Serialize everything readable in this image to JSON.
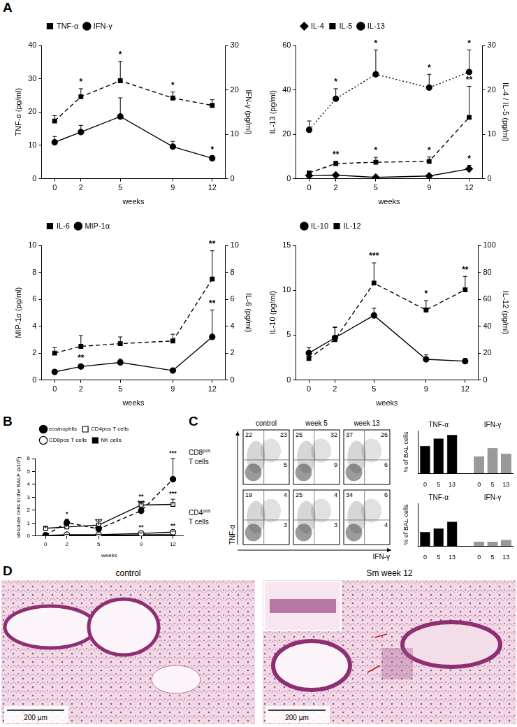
{
  "panel_labels": [
    "A",
    "B",
    "C",
    "D"
  ],
  "chart_data": [
    {
      "type": "line",
      "x_label": "weeks",
      "y_label": "TNF-α (pg/ml)",
      "y2_label": "IFN-γ (pg/ml)",
      "x": [
        0,
        2,
        5,
        9,
        12
      ],
      "xlim": [
        -1,
        13
      ],
      "xticks": [
        0,
        2,
        5,
        9,
        12
      ],
      "ylim": [
        0,
        40
      ],
      "yticks": [
        0,
        10,
        20,
        30,
        40
      ],
      "y2lim": [
        0,
        30
      ],
      "y2ticks": [
        0,
        10,
        20,
        30
      ],
      "grid": false,
      "legend": "top-left",
      "series": [
        {
          "name": "TNF-α",
          "color": "#000000",
          "marker": "square",
          "line_style": "dashed",
          "values": [
            17.3,
            24.6,
            29.4,
            24.2,
            22
          ],
          "errors": [
            1.6,
            2.4,
            5.8,
            1.8,
            1.7
          ],
          "significance": [
            null,
            "*",
            "*",
            "*",
            null
          ]
        },
        {
          "name": "IFN-γ",
          "axis": "y2",
          "color": "#000000",
          "marker": "circle",
          "line_style": "solid",
          "values": [
            8.2,
            10.5,
            14,
            7.2,
            4.6
          ],
          "errors": [
            1.3,
            1.5,
            4.2,
            1.2,
            0.5
          ],
          "significance": [
            null,
            null,
            null,
            null,
            "*"
          ]
        }
      ]
    },
    {
      "type": "line",
      "x_label": "weeks",
      "y_label": "IL-13 (pg/ml)",
      "y2_label": "IL-4 / IL-5 (pg/ml)",
      "x": [
        0,
        2,
        5,
        9,
        12
      ],
      "xlim": [
        -1,
        13
      ],
      "xticks": [
        0,
        2,
        5,
        9,
        12
      ],
      "ylim": [
        0,
        60
      ],
      "yticks": [
        0,
        20,
        40,
        60
      ],
      "y2lim": [
        0,
        30
      ],
      "y2ticks": [
        0,
        10,
        20,
        30
      ],
      "grid": false,
      "legend": "top-left",
      "series": [
        {
          "name": "IL-4",
          "axis": "y2",
          "color": "#000000",
          "marker": "diamond",
          "line_style": "solid",
          "values": [
            0.7,
            0.8,
            0.3,
            0.6,
            2.2
          ],
          "errors": [
            0.3,
            0.3,
            0.2,
            0.3,
            0.8
          ],
          "significance": [
            null,
            null,
            null,
            null,
            "*"
          ]
        },
        {
          "name": "IL-5",
          "axis": "y2",
          "color": "#000000",
          "marker": "square",
          "line_style": "dashed",
          "values": [
            1.3,
            3.4,
            3.7,
            3.9,
            13.8
          ],
          "errors": [
            0.4,
            0.5,
            1.1,
            1,
            7
          ],
          "significance": [
            null,
            "**",
            "*",
            "*",
            "**"
          ]
        },
        {
          "name": "IL-13",
          "color": "#000000",
          "marker": "circle",
          "line_style": "dotted",
          "values": [
            22,
            36,
            47,
            41,
            48
          ],
          "errors": [
            4,
            4.5,
            11,
            6,
            10
          ],
          "significance": [
            null,
            "*",
            "*",
            "*",
            "*"
          ]
        }
      ]
    },
    {
      "type": "line",
      "x_label": "weeks",
      "y_label": "MIP-1α (pg/ml)",
      "y2_label": "IL-6 (pg/ml)",
      "x": [
        0,
        2,
        5,
        9,
        12
      ],
      "xlim": [
        -1,
        13
      ],
      "xticks": [
        0,
        2,
        5,
        9,
        12
      ],
      "ylim": [
        0,
        10
      ],
      "yticks": [
        0,
        2,
        4,
        6,
        8,
        10
      ],
      "y2lim": [
        0,
        10
      ],
      "y2ticks": [
        0,
        2,
        4,
        6,
        8,
        10
      ],
      "grid": false,
      "legend": "top-left",
      "series": [
        {
          "name": "IL-6",
          "axis": "y2",
          "color": "#000000",
          "marker": "square",
          "line_style": "dashed",
          "values": [
            2,
            2.5,
            2.7,
            2.9,
            7.5
          ],
          "errors": [
            0.4,
            0.8,
            0.5,
            0.5,
            2.1
          ],
          "significance": [
            null,
            null,
            null,
            null,
            "**"
          ]
        },
        {
          "name": "MIP-1α",
          "color": "#000000",
          "marker": "circle",
          "line_style": "solid",
          "values": [
            0.6,
            1.0,
            1.3,
            0.7,
            3.2
          ],
          "errors": [
            0.1,
            0.15,
            0.25,
            0.1,
            2
          ],
          "significance": [
            null,
            "**",
            null,
            null,
            "**"
          ]
        }
      ]
    },
    {
      "type": "line",
      "x_label": "weeks",
      "y_label": "IL-10 (pg/ml)",
      "y2_label": "IL-12 (pg/ml)",
      "x": [
        0,
        2,
        5,
        9,
        12
      ],
      "xlim": [
        -1,
        13
      ],
      "xticks": [
        0,
        2,
        5,
        9,
        12
      ],
      "ylim": [
        0,
        15
      ],
      "yticks": [
        0,
        5,
        10,
        15
      ],
      "y2lim": [
        0,
        100
      ],
      "y2ticks": [
        0,
        20,
        40,
        60,
        80,
        100
      ],
      "grid": false,
      "legend": "top-left",
      "series": [
        {
          "name": "IL-10",
          "color": "#000000",
          "marker": "circle",
          "line_style": "solid",
          "values": [
            3,
            4.7,
            7.2,
            2.3,
            2.1
          ],
          "errors": [
            0.6,
            1.2,
            0.8,
            0.5,
            0.3
          ]
        },
        {
          "name": "IL-12",
          "axis": "y2",
          "color": "#000000",
          "marker": "square",
          "line_style": "dashed",
          "values": [
            16,
            30,
            72,
            52,
            67
          ],
          "errors": [
            3,
            9,
            15,
            7,
            10
          ],
          "significance": [
            null,
            null,
            "***",
            "*",
            "**"
          ]
        }
      ]
    },
    {
      "type": "line",
      "x_label": "weeks",
      "y_label": "absolute cells in the BALF (x10⁶)",
      "x": [
        0,
        2,
        5,
        9,
        12
      ],
      "xlim": [
        -1,
        13
      ],
      "xticks": [
        0,
        2,
        5,
        9,
        12
      ],
      "ylim": [
        0,
        6
      ],
      "yticks": [
        0,
        1,
        2,
        3,
        4,
        5,
        6
      ],
      "grid": false,
      "legend": "top-left",
      "series": [
        {
          "name": "eosinophils",
          "color": "#000000",
          "marker": "circle",
          "line_style": "dashed",
          "values": [
            0.05,
            1.05,
            0.55,
            1.95,
            4.4
          ],
          "errors": [
            0.05,
            0.25,
            0.2,
            0.2,
            1.6
          ],
          "significance": [
            null,
            "*",
            "***",
            "***",
            "***"
          ]
        },
        {
          "name": "CD4pos T cells",
          "color": "#000000",
          "marker": "open square",
          "line_style": "solid",
          "values": [
            0.6,
            0.7,
            0.85,
            2.4,
            2.45
          ],
          "errors": [
            0.1,
            0.1,
            0.25,
            0.25,
            0.4
          ],
          "significance": [
            null,
            null,
            null,
            "**",
            "***"
          ]
        },
        {
          "name": "CD8pos T cells",
          "color": "#000000",
          "marker": "open circle",
          "line_style": "solid",
          "values": [
            0.05,
            0.1,
            0.1,
            0.2,
            0.3
          ],
          "errors": [
            0.02,
            0.03,
            0.03,
            0.05,
            0.08
          ],
          "significance": [
            null,
            null,
            "***",
            "**",
            "**"
          ]
        },
        {
          "name": "NK cells",
          "color": "#000000",
          "marker": "square",
          "line_style": "solid",
          "values": [
            0.02,
            0.05,
            0.05,
            0.1,
            0.1
          ]
        }
      ]
    },
    {
      "type": "bar",
      "y_label": "% of BAL cells",
      "categories": [
        "0",
        "5",
        "13",
        null,
        "0",
        "5",
        "13"
      ],
      "ylim": [
        0,
        70
      ],
      "tick_labels": "x",
      "grid": false,
      "series": [
        {
          "name": "TNF-α",
          "color": "#000000",
          "values": [
            45,
            57,
            63,
            null,
            null,
            null,
            null
          ]
        },
        {
          "name": "IFN-γ",
          "color": "#999999",
          "values": [
            null,
            null,
            null,
            null,
            28,
            41,
            32
          ]
        }
      ]
    },
    {
      "type": "bar",
      "y_label": "% of BAL cells",
      "categories": [
        "0",
        "5",
        "13",
        null,
        "0",
        "5",
        "13"
      ],
      "ylim": [
        0,
        70
      ],
      "tick_labels": "x",
      "grid": false,
      "series": [
        {
          "name": "TNF-α",
          "color": "#000000",
          "values": [
            23,
            29,
            40,
            null,
            null,
            null,
            null
          ]
        },
        {
          "name": "IFN-γ",
          "color": "#999999",
          "values": [
            null,
            null,
            null,
            null,
            7,
            7,
            10
          ]
        }
      ]
    }
  ],
  "flow_cytometry": {
    "columns": [
      "control",
      "week 5",
      "week 13"
    ],
    "rows": [
      "CD8pos T cells",
      "CD4pos T cells"
    ],
    "y_axis": "TNF-α",
    "x_axis": "IFN-γ",
    "quadrants": [
      [
        [
          22,
          23,
          5
        ],
        [
          25,
          32,
          9
        ],
        [
          37,
          26,
          6
        ]
      ],
      [
        [
          19,
          4,
          3
        ],
        [
          25,
          4,
          3
        ],
        [
          34,
          6,
          4
        ]
      ]
    ]
  },
  "histology": {
    "panels": [
      {
        "title": "control",
        "scale_bar": "200 µm"
      },
      {
        "title": "Sm week 12",
        "scale_bar": "200 µm"
      }
    ]
  }
}
